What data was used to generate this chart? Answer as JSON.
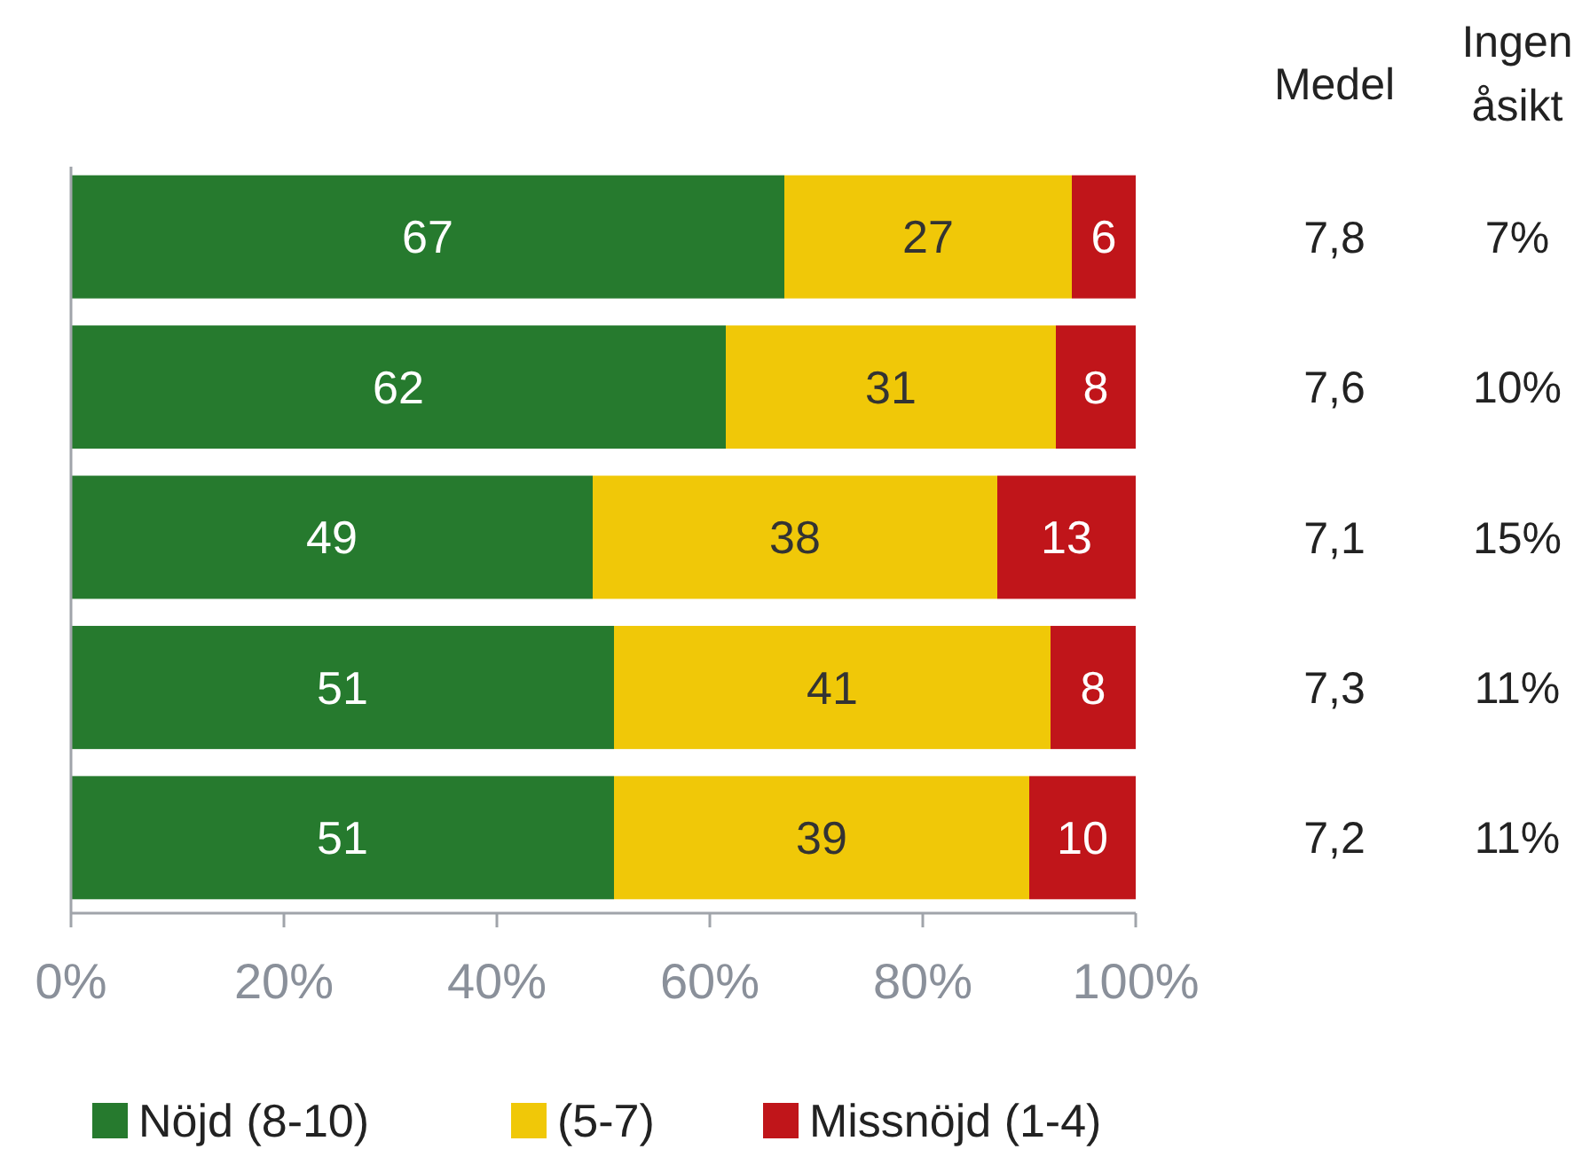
{
  "chart_data": {
    "type": "bar",
    "orientation": "horizontal",
    "stacked": true,
    "categories": [
      null,
      null,
      null,
      null,
      null
    ],
    "series": [
      {
        "name": "Nöjd (8-10)",
        "color": "#267a2e",
        "values": [
          67,
          61.5,
          49,
          51,
          51
        ],
        "value_labels": [
          "67",
          "62",
          "49",
          "51",
          "51"
        ]
      },
      {
        "name": "(5-7)",
        "color": "#f0c808",
        "values": [
          27,
          31,
          38,
          41,
          39
        ],
        "value_labels": [
          "27",
          "31",
          "38",
          "41",
          "39"
        ]
      },
      {
        "name": "Missnöjd (1-4)",
        "color": "#c0151a",
        "values": [
          6,
          7.5,
          13,
          8,
          10
        ],
        "value_labels": [
          "6",
          "8",
          "13",
          "8",
          "10"
        ]
      }
    ],
    "xlim": [
      0,
      100
    ],
    "xticks": [
      {
        "value": 0,
        "label": "0%"
      },
      {
        "value": 20,
        "label": "20%"
      },
      {
        "value": 40,
        "label": "40%"
      },
      {
        "value": 60,
        "label": "60%"
      },
      {
        "value": 80,
        "label": "80%"
      },
      {
        "value": 100,
        "label": "100%"
      }
    ],
    "grid": false,
    "legend": "bottom",
    "annotations": [
      "Medel",
      "Ingen åsikt",
      "7,8",
      "7%",
      "7,6",
      "10%",
      "7,1",
      "15%",
      "7,3",
      "11%",
      "7,2",
      "11%"
    ]
  }
}
